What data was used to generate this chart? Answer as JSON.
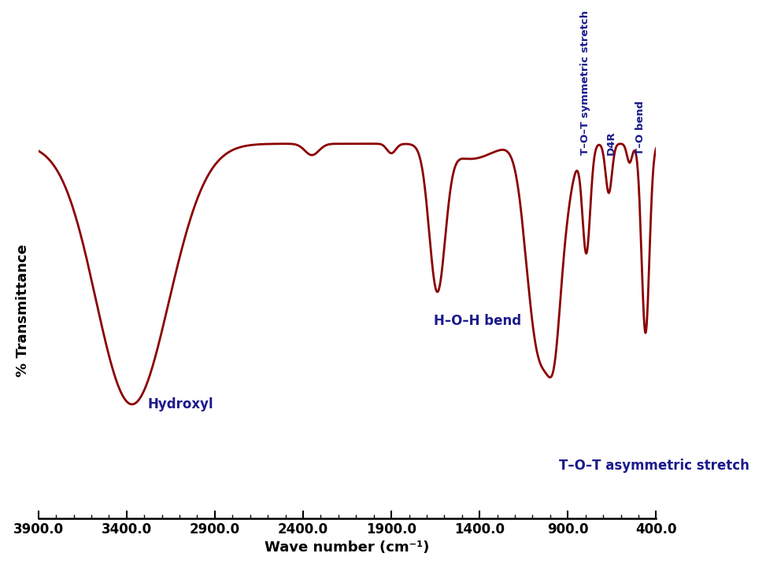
{
  "xmin": 400.0,
  "xmax": 3900.0,
  "xticks": [
    3900.0,
    3400.0,
    2900.0,
    2400.0,
    1900.0,
    1400.0,
    900.0,
    400.0
  ],
  "xlabel": "Wave number (cm⁻¹)",
  "ylabel": "% Transmittance",
  "line_color": "#8B0000",
  "line_width": 2.0,
  "label_color": "#1a1a8c",
  "background_color": "#ffffff",
  "ylim": [
    -0.02,
    1.08
  ],
  "ytop": 0.97
}
